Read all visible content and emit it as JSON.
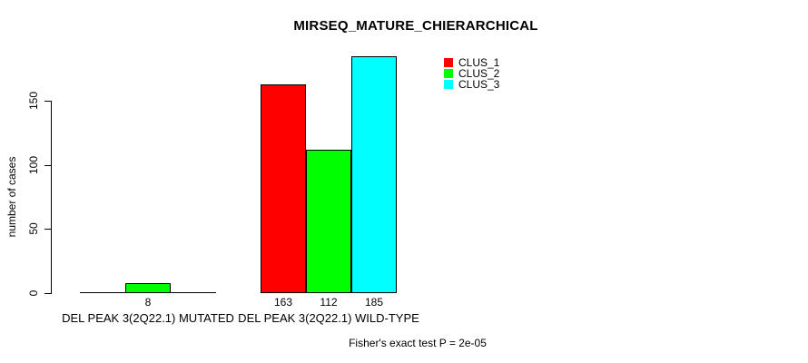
{
  "chart_data": {
    "type": "bar",
    "title": "MIRSEQ_MATURE_CHIERARCHICAL",
    "xlabel": "",
    "ylabel": "number of cases",
    "ylim": [
      0,
      150
    ],
    "yticks": [
      0,
      50,
      100,
      150
    ],
    "grid": false,
    "categories": [
      "DEL PEAK 3(2Q22.1) MUTATED",
      "DEL PEAK 3(2Q22.1) WILD-TYPE"
    ],
    "series": [
      {
        "name": "CLUS_1",
        "color": "#ff0000",
        "values": [
          0,
          163
        ],
        "bar_labels": [
          "",
          "163"
        ]
      },
      {
        "name": "CLUS_2",
        "color": "#00ff00",
        "values": [
          8,
          112
        ],
        "bar_labels": [
          "8",
          "112"
        ]
      },
      {
        "name": "CLUS_3",
        "color": "#00ffff",
        "values": [
          0,
          185
        ],
        "bar_labels": [
          "",
          "185"
        ]
      }
    ],
    "legend": {
      "position": "top-right",
      "entries": [
        "CLUS_1",
        "CLUS_2",
        "CLUS_3"
      ]
    },
    "footnote": "Fisher's exact test P = 2e-05"
  },
  "colors": {
    "background": "#ffffff",
    "axis": "#000000",
    "text": "#000000"
  }
}
